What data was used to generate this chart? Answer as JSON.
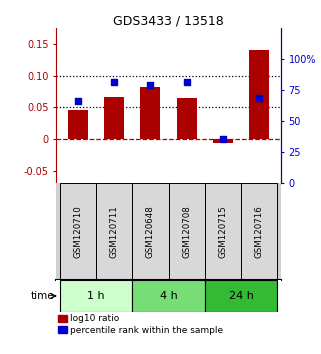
{
  "title": "GDS3433 / 13518",
  "samples": [
    "GSM120710",
    "GSM120711",
    "GSM120648",
    "GSM120708",
    "GSM120715",
    "GSM120716"
  ],
  "log10_ratio": [
    0.046,
    0.067,
    0.082,
    0.065,
    -0.007,
    0.14
  ],
  "percentile_rank": [
    66,
    82,
    79,
    82,
    36,
    69
  ],
  "bar_color": "#aa0000",
  "dot_color": "#0000cc",
  "ylim_left": [
    -0.07,
    0.175
  ],
  "ylim_right": [
    0,
    125
  ],
  "yticks_left": [
    -0.05,
    0,
    0.05,
    0.1,
    0.15
  ],
  "yticks_right": [
    0,
    25,
    50,
    75,
    100
  ],
  "ytick_labels_left": [
    "-0.05",
    "0",
    "0.05",
    "0.10",
    "0.15"
  ],
  "ytick_labels_right": [
    "0",
    "25",
    "50",
    "75",
    "100%"
  ],
  "hlines_dotted": [
    0.05,
    0.1
  ],
  "hline_dashed": 0,
  "time_groups": [
    {
      "label": "1 h",
      "start": 0,
      "end": 2,
      "color": "#ccffcc"
    },
    {
      "label": "4 h",
      "start": 2,
      "end": 4,
      "color": "#77dd77"
    },
    {
      "label": "24 h",
      "start": 4,
      "end": 6,
      "color": "#33bb33"
    }
  ],
  "legend_items": [
    {
      "color": "#aa0000",
      "label": "log10 ratio"
    },
    {
      "color": "#0000cc",
      "label": "percentile rank within the sample"
    }
  ],
  "time_label": "time",
  "bg_color": "#ffffff"
}
